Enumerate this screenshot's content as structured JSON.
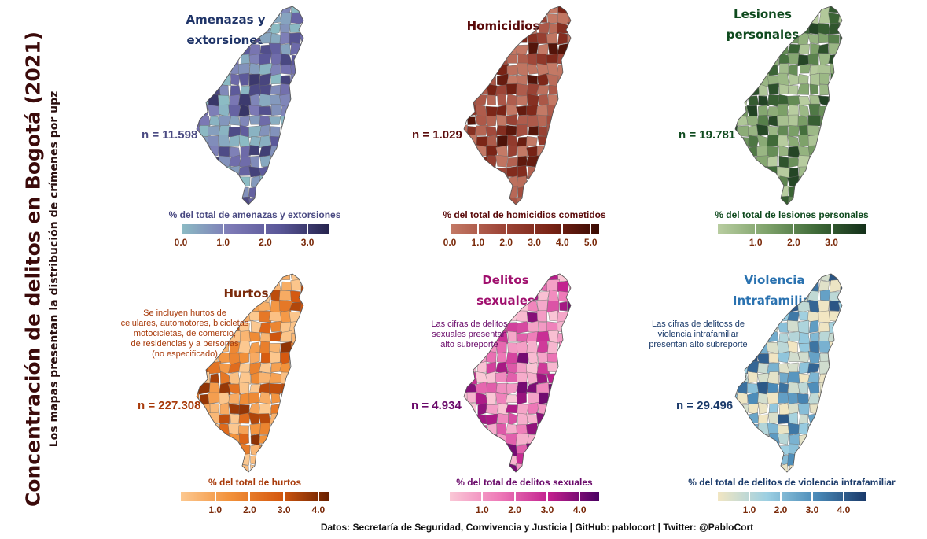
{
  "title": "Concentración de delitos en Bogotá (2021)",
  "subtitle": "Los mapas presentan la distribución de crímenes por upz",
  "caption": "Datos: Secretaría de Seguridad, Convivencia y Justicia | GitHub: pablocort | Twitter: @PabloCort",
  "chart_data": [
    {
      "type": "choropleth",
      "title_lines": [
        "Amenazas y",
        "extorsiones"
      ],
      "n_label": "n = 11.598",
      "note_lines": [],
      "legend_title": "% del total de amenazas y extorsiones",
      "legend_ticks": [
        "0.0",
        "1.0",
        "2.0",
        "3.0"
      ],
      "tick_values": [
        0.0,
        1.0,
        2.0,
        3.0
      ],
      "range": [
        0.0,
        3.5
      ],
      "colors": [
        "#8cbcc4",
        "#7d7ab6",
        "#5a5798",
        "#26244e"
      ],
      "text_color": "#1f3468",
      "n_color": "#4a4a82"
    },
    {
      "type": "choropleth",
      "title_lines": [
        "Homicidios"
      ],
      "n_label": "n = 1.029",
      "note_lines": [],
      "legend_title": "% del total de homicidios cometidos",
      "legend_ticks": [
        "0.0",
        "1.0",
        "2.0",
        "3.0",
        "4.0",
        "5.0"
      ],
      "tick_values": [
        0.0,
        1.0,
        2.0,
        3.0,
        4.0,
        5.0
      ],
      "range": [
        0.0,
        5.3
      ],
      "colors": [
        "#c47a66",
        "#a0483a",
        "#7a2416",
        "#3a0a02"
      ],
      "text_color": "#5a0a0a",
      "n_color": "#5a0a0a"
    },
    {
      "type": "choropleth",
      "title_lines": [
        "Lesiones",
        "personales"
      ],
      "n_label": "n = 19.781",
      "note_lines": [],
      "legend_title": "% del total de lesiones personales",
      "legend_ticks": [
        "1.0",
        "2.0",
        "3.0"
      ],
      "tick_values": [
        1.0,
        2.0,
        3.0
      ],
      "range": [
        0.0,
        3.9
      ],
      "colors": [
        "#b8cda0",
        "#7ea26a",
        "#3f6a38",
        "#14301a"
      ],
      "text_color": "#0f4a1e",
      "n_color": "#0f4a1e"
    },
    {
      "type": "choropleth",
      "title_lines": [
        "Hurtos"
      ],
      "n_label": "n = 227.308",
      "note_lines": [
        "Se incluyen hurtos de",
        "celulares, automotores, bicicletas",
        "motocicletas, de comercio,",
        "de residencias y a personas",
        "(no especificado)"
      ],
      "legend_title": "% del total de hurtos",
      "legend_ticks": [
        "1.0",
        "2.0",
        "3.0",
        "4.0"
      ],
      "tick_values": [
        1.0,
        2.0,
        3.0,
        4.0
      ],
      "range": [
        0.0,
        4.3
      ],
      "colors": [
        "#fcc890",
        "#f2913a",
        "#d65a10",
        "#6a2000"
      ],
      "text_color": "#7a2a0a",
      "n_color": "#a83a0a"
    },
    {
      "type": "choropleth",
      "title_lines": [
        "Delitos",
        "sexuales"
      ],
      "n_label": "n = 4.934",
      "note_lines": [
        "Las cifras de delitos",
        "sexuales presentan",
        "alto subreporte"
      ],
      "legend_title": "% del total de delitos sexuales",
      "legend_ticks": [
        "1.0",
        "2.0",
        "3.0",
        "4.0"
      ],
      "tick_values": [
        1.0,
        2.0,
        3.0,
        4.0
      ],
      "range": [
        0.0,
        4.6
      ],
      "colors": [
        "#fac8d6",
        "#ee7ab8",
        "#c2208e",
        "#4a0062"
      ],
      "text_color": "#a0106e",
      "n_color": "#6a0a6a"
    },
    {
      "type": "choropleth",
      "title_lines": [
        "Violencia",
        "Intrafamiliar"
      ],
      "n_label": "n = 29.496",
      "note_lines": [
        "Las cifras de delitoss de",
        "violencia intrafamiliar",
        "presentan alto subreporte"
      ],
      "legend_title": "% del total de delitos de violencia intrafamiliar",
      "legend_ticks": [
        "1.0",
        "2.0",
        "3.0",
        "4.0"
      ],
      "tick_values": [
        1.0,
        2.0,
        3.0,
        4.0
      ],
      "range": [
        0.0,
        4.7
      ],
      "colors": [
        "#f2e6c2",
        "#9ccfe2",
        "#4a8ab8",
        "#1a3a6a"
      ],
      "text_color": "#2a72b0",
      "n_color": "#1a3a6a"
    }
  ]
}
